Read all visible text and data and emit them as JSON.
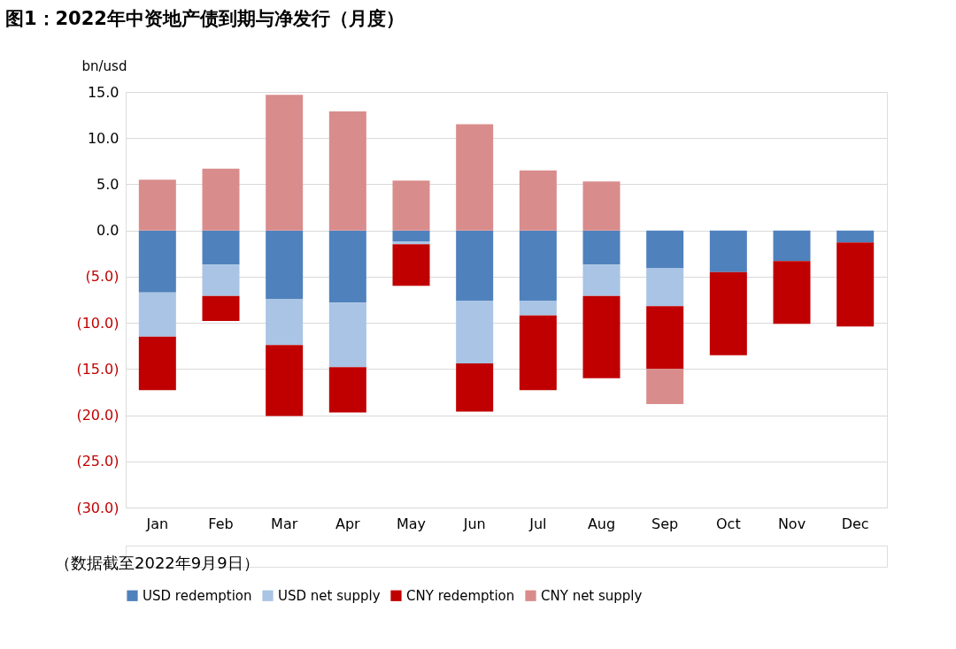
{
  "chart_data": {
    "type": "bar",
    "title": "图1：2022年中资地产债到期与净发行（月度）",
    "ylabel": "bn/usd",
    "stacked": true,
    "categories": [
      "Jan",
      "Feb",
      "Mar",
      "Apr",
      "May",
      "Jun",
      "Jul",
      "Aug",
      "Sep",
      "Oct",
      "Nov",
      "Dec"
    ],
    "series": [
      {
        "name": "USD redemption",
        "color": "#4f81bd",
        "values": [
          -6.7,
          -3.7,
          -7.4,
          -7.8,
          -1.2,
          -7.6,
          -7.6,
          -3.7,
          -4.1,
          -4.5,
          -3.3,
          -1.3
        ]
      },
      {
        "name": "USD net supply",
        "color": "#a9c4e4",
        "values": [
          -4.8,
          -3.4,
          -5.0,
          -7.0,
          -0.3,
          -6.8,
          -1.6,
          -3.4,
          -4.1,
          null,
          null,
          null
        ]
      },
      {
        "name": "CNY redemption",
        "color": "#c00000",
        "values": [
          -5.8,
          -2.7,
          -7.7,
          -4.9,
          -4.5,
          -5.2,
          -8.1,
          -8.9,
          -6.8,
          -9.0,
          -6.8,
          -9.1
        ]
      },
      {
        "name": "CNY net supply",
        "color": "#d98c8c",
        "values": [
          5.5,
          6.7,
          14.7,
          12.9,
          5.4,
          11.5,
          6.5,
          5.3,
          -3.8,
          null,
          null,
          null
        ]
      }
    ],
    "ylim": [
      -30,
      15
    ],
    "yticks": [
      {
        "value": -30,
        "label": "(30.0)"
      },
      {
        "value": -25,
        "label": "(25.0)"
      },
      {
        "value": -20,
        "label": "(20.0)"
      },
      {
        "value": -15,
        "label": "(15.0)"
      },
      {
        "value": -10,
        "label": "(10.0)"
      },
      {
        "value": -5,
        "label": "(5.0)"
      },
      {
        "value": 0,
        "label": "0.0"
      },
      {
        "value": 5,
        "label": "5.0"
      },
      {
        "value": 10,
        "label": "10.0"
      },
      {
        "value": 15,
        "label": "15.0"
      }
    ],
    "grid": "y",
    "legend": "bottom",
    "annotations": [
      "（数据截至2022年9月9日）"
    ]
  }
}
